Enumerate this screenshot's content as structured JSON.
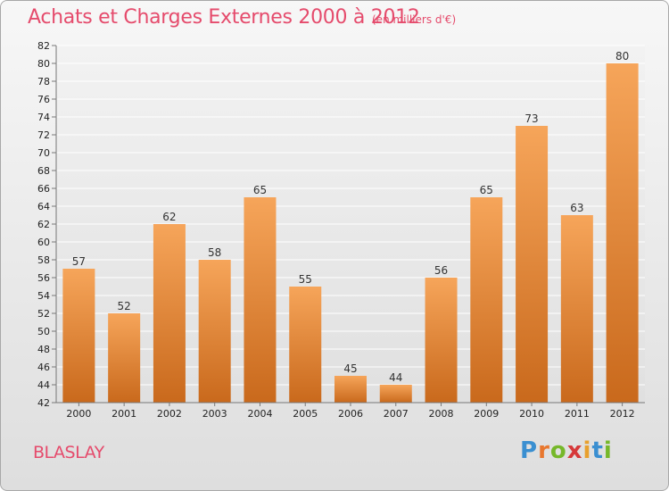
{
  "header": {
    "title": "Achats et Charges Externes 2000 à 2012",
    "subtitle": "(en milliers d'€)"
  },
  "commune": "BLASLAY",
  "logo": {
    "text": "Proxiti",
    "letters": [
      "P",
      "r",
      "o",
      "x",
      "i",
      "t",
      "i"
    ],
    "colors": [
      "#3a8fd1",
      "#e8772e",
      "#76b82a",
      "#d6393a",
      "#e8a02e",
      "#3a8fd1",
      "#76b82a"
    ]
  },
  "colors": {
    "bar_top": "#f6a55a",
    "bar_bottom": "#c9691c",
    "title": "#e54b6c"
  },
  "chart_data": {
    "type": "bar",
    "title": "Achats et Charges Externes 2000 à 2012",
    "subtitle": "(en milliers d'€)",
    "categories": [
      "2000",
      "2001",
      "2002",
      "2003",
      "2004",
      "2005",
      "2006",
      "2007",
      "2008",
      "2009",
      "2010",
      "2011",
      "2012"
    ],
    "values": [
      57,
      52,
      62,
      58,
      65,
      55,
      45,
      44,
      56,
      65,
      73,
      63,
      80
    ],
    "ylim": [
      42,
      82
    ],
    "yticks": [
      42,
      44,
      46,
      48,
      50,
      52,
      54,
      56,
      58,
      60,
      62,
      64,
      66,
      68,
      70,
      72,
      74,
      76,
      78,
      80,
      82
    ],
    "grid": true,
    "xlabel": "",
    "ylabel": ""
  }
}
